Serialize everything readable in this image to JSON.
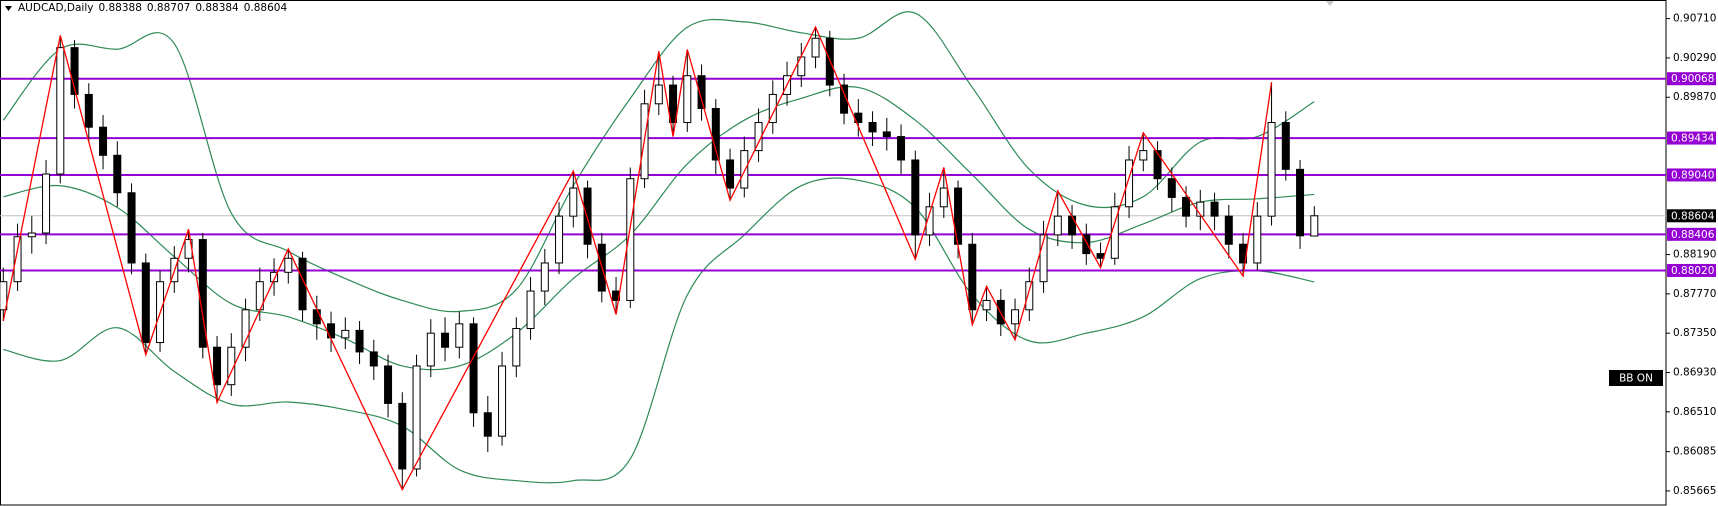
{
  "chart_data": {
    "type": "candlestick",
    "symbol": "AUDCAD,Daily",
    "candles": {
      "open": [
        0.876,
        0.879,
        0.8838,
        0.8842,
        0.8905,
        0.904,
        0.899,
        0.8955,
        0.8925,
        0.8885,
        0.881,
        0.8725,
        0.879,
        0.8815,
        0.8835,
        0.872,
        0.868,
        0.872,
        0.876,
        0.879,
        0.88,
        0.8815,
        0.876,
        0.8745,
        0.873,
        0.8738,
        0.8715,
        0.87,
        0.866,
        0.859,
        0.87,
        0.8735,
        0.872,
        0.8745,
        0.865,
        0.8625,
        0.87,
        0.874,
        0.878,
        0.881,
        0.886,
        0.889,
        0.883,
        0.878,
        0.877,
        0.89,
        0.898,
        0.9,
        0.896,
        0.901,
        0.8975,
        0.892,
        0.889,
        0.893,
        0.896,
        0.899,
        0.901,
        0.903,
        0.905,
        0.9,
        0.897,
        0.896,
        0.895,
        0.8945,
        0.892,
        0.884,
        0.887,
        0.889,
        0.883,
        0.876,
        0.877,
        0.8745,
        0.876,
        0.879,
        0.884,
        0.886,
        0.884,
        0.882,
        0.8815,
        0.887,
        0.892,
        0.893,
        0.89,
        0.888,
        0.886,
        0.8875,
        0.886,
        0.883,
        0.881,
        0.886,
        0.896,
        0.891,
        0.88388
      ],
      "high": [
        0.8805,
        0.8852,
        0.886,
        0.892,
        0.9053,
        0.9048,
        0.9002,
        0.8968,
        0.894,
        0.8895,
        0.882,
        0.8802,
        0.8828,
        0.8846,
        0.8842,
        0.8732,
        0.8735,
        0.8772,
        0.8805,
        0.8815,
        0.8825,
        0.8822,
        0.8775,
        0.8758,
        0.8752,
        0.8748,
        0.8728,
        0.8712,
        0.8672,
        0.8712,
        0.875,
        0.8752,
        0.8758,
        0.8752,
        0.8668,
        0.8715,
        0.8752,
        0.8795,
        0.8825,
        0.8875,
        0.8908,
        0.8898,
        0.8842,
        0.8795,
        0.8912,
        0.8995,
        0.9036,
        0.901,
        0.9038,
        0.9022,
        0.8985,
        0.8932,
        0.8945,
        0.8975,
        0.9005,
        0.9025,
        0.9045,
        0.9062,
        0.9058,
        0.9012,
        0.8985,
        0.8972,
        0.8965,
        0.8958,
        0.893,
        0.8885,
        0.8912,
        0.8898,
        0.8842,
        0.8785,
        0.8782,
        0.8772,
        0.8805,
        0.8855,
        0.8887,
        0.8872,
        0.8852,
        0.8832,
        0.8885,
        0.8935,
        0.8949,
        0.894,
        0.8912,
        0.8892,
        0.8888,
        0.8885,
        0.8872,
        0.8842,
        0.8875,
        0.9003,
        0.8972,
        0.892,
        0.88707
      ],
      "low": [
        0.8748,
        0.878,
        0.882,
        0.883,
        0.8895,
        0.8975,
        0.894,
        0.891,
        0.887,
        0.8798,
        0.8712,
        0.8715,
        0.8778,
        0.88,
        0.8708,
        0.8661,
        0.8668,
        0.8705,
        0.8748,
        0.8775,
        0.8788,
        0.8748,
        0.8728,
        0.8715,
        0.8718,
        0.8702,
        0.8685,
        0.8645,
        0.8568,
        0.8582,
        0.8688,
        0.8705,
        0.8708,
        0.8635,
        0.8608,
        0.8615,
        0.8688,
        0.8728,
        0.8765,
        0.8798,
        0.8848,
        0.8815,
        0.8768,
        0.8755,
        0.8762,
        0.889,
        0.8968,
        0.8945,
        0.895,
        0.8962,
        0.8905,
        0.8877,
        0.888,
        0.8918,
        0.8948,
        0.8978,
        0.8998,
        0.9018,
        0.8988,
        0.8958,
        0.8945,
        0.8935,
        0.893,
        0.8905,
        0.8814,
        0.8828,
        0.8858,
        0.8815,
        0.8744,
        0.8748,
        0.8732,
        0.8728,
        0.8748,
        0.8778,
        0.8828,
        0.8825,
        0.8808,
        0.8805,
        0.8808,
        0.8858,
        0.8908,
        0.8888,
        0.8865,
        0.8848,
        0.8845,
        0.8845,
        0.8815,
        0.8796,
        0.8802,
        0.885,
        0.8898,
        0.8825,
        0.88384
      ],
      "close": [
        0.879,
        0.8838,
        0.8842,
        0.8905,
        0.904,
        0.899,
        0.8955,
        0.8925,
        0.8885,
        0.881,
        0.8725,
        0.879,
        0.8815,
        0.8835,
        0.872,
        0.868,
        0.872,
        0.876,
        0.879,
        0.88,
        0.8815,
        0.876,
        0.8745,
        0.873,
        0.8738,
        0.8715,
        0.87,
        0.866,
        0.859,
        0.87,
        0.8735,
        0.872,
        0.8745,
        0.865,
        0.8625,
        0.87,
        0.874,
        0.878,
        0.881,
        0.886,
        0.889,
        0.883,
        0.878,
        0.877,
        0.89,
        0.898,
        0.9,
        0.896,
        0.901,
        0.8975,
        0.892,
        0.889,
        0.893,
        0.896,
        0.899,
        0.901,
        0.903,
        0.905,
        0.9,
        0.897,
        0.896,
        0.895,
        0.8945,
        0.892,
        0.884,
        0.887,
        0.889,
        0.883,
        0.876,
        0.877,
        0.8745,
        0.876,
        0.879,
        0.884,
        0.886,
        0.884,
        0.882,
        0.8815,
        0.887,
        0.892,
        0.893,
        0.89,
        0.888,
        0.886,
        0.8875,
        0.886,
        0.883,
        0.881,
        0.886,
        0.896,
        0.891,
        0.8839,
        0.88604
      ],
      "up_color": "#ffffff",
      "down_color": "#000000",
      "outline_color": "#000000"
    },
    "bands": {
      "x": [
        0,
        4,
        8,
        12,
        16,
        20,
        24,
        28,
        32,
        36,
        40,
        44,
        48,
        52,
        56,
        60,
        64,
        68,
        72,
        76,
        80,
        84,
        88,
        92
      ],
      "color": "#2e8b57",
      "series": [
        {
          "values": [
            0.89625,
            0.90383,
            0.90383,
            0.90442,
            0.88633,
            0.88225,
            0.87933,
            0.877,
            0.87583,
            0.87816,
            0.88925,
            0.89858,
            0.90617,
            0.90675,
            0.90558,
            0.905,
            0.90768,
            0.89975,
            0.891,
            0.88715,
            0.88808,
            0.89392,
            0.8945,
            0.89823
          ]
        },
        {
          "values": [
            0.88808,
            0.88925,
            0.88692,
            0.88167,
            0.87665,
            0.87525,
            0.87291,
            0.87,
            0.87,
            0.8735,
            0.87933,
            0.884,
            0.89158,
            0.89625,
            0.89858,
            0.89975,
            0.89625,
            0.89042,
            0.88458,
            0.88318,
            0.88517,
            0.8875,
            0.88785,
            0.88832
          ]
        },
        {
          "values": [
            0.87175,
            0.87058,
            0.87408,
            0.86941,
            0.86591,
            0.86615,
            0.86533,
            0.86358,
            0.85891,
            0.85775,
            0.85775,
            0.86008,
            0.87758,
            0.884,
            0.88925,
            0.88983,
            0.88692,
            0.87758,
            0.87268,
            0.8735,
            0.87525,
            0.87933,
            0.88015,
            0.87898
          ]
        }
      ]
    },
    "zigzag": {
      "color": "#ff0000",
      "x": [
        0,
        4,
        10,
        13,
        15,
        20,
        28,
        40,
        43,
        46,
        47,
        48,
        51,
        57,
        64,
        66,
        68,
        69,
        71,
        74,
        77,
        80,
        87,
        89
      ],
      "values": [
        0.8748,
        0.9053,
        0.8712,
        0.8846,
        0.8661,
        0.8825,
        0.8568,
        0.8908,
        0.8755,
        0.9036,
        0.8945,
        0.9038,
        0.8877,
        0.9062,
        0.8814,
        0.8912,
        0.8744,
        0.8785,
        0.8728,
        0.8887,
        0.8805,
        0.8949,
        0.8796,
        0.9003
      ]
    },
    "levels": {
      "color": "#9400d3",
      "values": [
        0.90068,
        0.89434,
        {
          "value": 0.8904,
          "label": "0.89040"
        },
        0.88406,
        {
          "value": 0.8802,
          "label": "0.88020"
        }
      ]
    },
    "price_line_color": "#c0c0c0",
    "indicator_label": "BB ON",
    "ylim": [
      0.85515,
      0.90898
    ],
    "yticks": [
      {
        "value": 0.9071,
        "label": "0.90710"
      },
      {
        "value": 0.9029,
        "label": "0.90290"
      },
      {
        "value": 0.8987,
        "label": "0.89870"
      },
      {
        "value": 0.8819,
        "label": "0.88190"
      },
      {
        "value": 0.8777,
        "label": "0.87770"
      },
      {
        "value": 0.8735,
        "label": "0.87350"
      },
      {
        "value": 0.8693,
        "label": "0.86930"
      },
      {
        "value": 0.8651,
        "label": "0.86510"
      },
      0.86085,
      0.85665
    ]
  }
}
